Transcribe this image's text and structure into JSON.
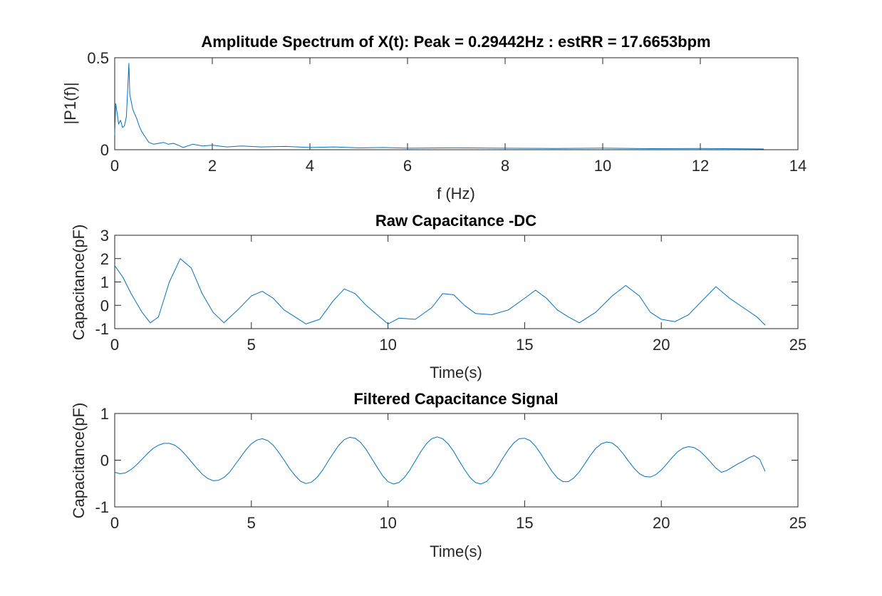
{
  "colors": {
    "series": "#0072bd",
    "axes": "#262626",
    "background": "#ffffff"
  },
  "chart_data": [
    {
      "type": "line",
      "title": "Amplitude Spectrum of X(t): Peak = 0.29442Hz : estRR = 17.6653bpm",
      "xlabel": "f (Hz)",
      "ylabel": "|P1(f)|",
      "xlim": [
        0,
        14
      ],
      "ylim": [
        0,
        0.5
      ],
      "xticks": [
        "0",
        "2",
        "4",
        "6",
        "8",
        "10",
        "12",
        "14"
      ],
      "yticks": [
        "0",
        "0.5"
      ],
      "grid": false,
      "series": [
        {
          "x": [
            0,
            0.02,
            0.05,
            0.08,
            0.12,
            0.16,
            0.2,
            0.24,
            0.27,
            0.29,
            0.31,
            0.34,
            0.37,
            0.4,
            0.45,
            0.5,
            0.55,
            0.6,
            0.65,
            0.7,
            0.8,
            0.9,
            1.0,
            1.1,
            1.2,
            1.3,
            1.4,
            1.6,
            1.8,
            2.0,
            2.3,
            2.6,
            3.0,
            3.5,
            4.0,
            4.5,
            5.0,
            5.5,
            6.0,
            7.0,
            8.0,
            9.0,
            10.0,
            11.0,
            12.0,
            13.0,
            13.3
          ],
          "y": [
            0.08,
            0.25,
            0.2,
            0.14,
            0.16,
            0.12,
            0.13,
            0.18,
            0.35,
            0.47,
            0.3,
            0.26,
            0.22,
            0.2,
            0.17,
            0.13,
            0.1,
            0.08,
            0.06,
            0.04,
            0.03,
            0.035,
            0.04,
            0.03,
            0.035,
            0.025,
            0.012,
            0.03,
            0.02,
            0.025,
            0.015,
            0.02,
            0.015,
            0.018,
            0.012,
            0.015,
            0.01,
            0.012,
            0.008,
            0.01,
            0.008,
            0.007,
            0.009,
            0.006,
            0.007,
            0.005,
            0.004
          ]
        }
      ]
    },
    {
      "type": "line",
      "title": "Raw Capacitance -DC",
      "xlabel": "Time(s)",
      "ylabel": "Capacitance(pF)",
      "xlim": [
        0,
        25
      ],
      "ylim": [
        -1,
        3
      ],
      "xticks": [
        "0",
        "5",
        "10",
        "15",
        "20",
        "25"
      ],
      "yticks": [
        "-1",
        "0",
        "1",
        "2",
        "3"
      ],
      "grid": false,
      "series": [
        {
          "x": [
            0,
            0.3,
            0.6,
            1.0,
            1.3,
            1.6,
            2.0,
            2.4,
            2.8,
            3.2,
            3.6,
            4.0,
            4.5,
            5.0,
            5.4,
            5.8,
            6.2,
            6.6,
            7.0,
            7.5,
            8.0,
            8.4,
            8.8,
            9.2,
            9.6,
            10.0,
            10.4,
            11.0,
            11.6,
            12.0,
            12.4,
            12.8,
            13.2,
            13.8,
            14.4,
            15.0,
            15.4,
            15.8,
            16.2,
            16.6,
            17.0,
            17.6,
            18.2,
            18.7,
            19.2,
            19.6,
            20.0,
            20.5,
            21.0,
            21.5,
            22.0,
            22.5,
            23.0,
            23.5,
            23.8
          ],
          "y": [
            1.7,
            1.2,
            0.5,
            -0.3,
            -0.75,
            -0.5,
            1.0,
            2.0,
            1.6,
            0.5,
            -0.3,
            -0.75,
            -0.2,
            0.4,
            0.6,
            0.3,
            -0.2,
            -0.5,
            -0.8,
            -0.6,
            0.2,
            0.7,
            0.5,
            0.0,
            -0.4,
            -0.8,
            -0.55,
            -0.6,
            -0.1,
            0.5,
            0.45,
            0.0,
            -0.35,
            -0.4,
            -0.2,
            0.3,
            0.65,
            0.3,
            -0.2,
            -0.5,
            -0.75,
            -0.3,
            0.4,
            0.85,
            0.4,
            -0.3,
            -0.6,
            -0.7,
            -0.4,
            0.2,
            0.8,
            0.3,
            -0.1,
            -0.5,
            -0.85
          ]
        }
      ]
    },
    {
      "type": "line",
      "title": "Filtered Capacitance Signal",
      "xlabel": "Time(s)",
      "ylabel": "Capacitance(pF)",
      "xlim": [
        0,
        25
      ],
      "ylim": [
        -1,
        1
      ],
      "xticks": [
        "0",
        "5",
        "10",
        "15",
        "20",
        "25"
      ],
      "yticks": [
        "-1",
        "0",
        "1"
      ],
      "grid": false,
      "series": [
        {
          "x": [
            0,
            0.2,
            0.4,
            0.6,
            0.8,
            1.0,
            1.2,
            1.4,
            1.6,
            1.8,
            2.0,
            2.2,
            2.4,
            2.6,
            2.8,
            3.0,
            3.2,
            3.4,
            3.6,
            3.8,
            4.0,
            4.2,
            4.4,
            4.6,
            4.8,
            5.0,
            5.2,
            5.4,
            5.6,
            5.8,
            6.0,
            6.2,
            6.4,
            6.6,
            6.8,
            7.0,
            7.2,
            7.4,
            7.6,
            7.8,
            8.0,
            8.2,
            8.4,
            8.6,
            8.8,
            9.0,
            9.2,
            9.4,
            9.6,
            9.8,
            10.0,
            10.2,
            10.4,
            10.6,
            10.8,
            11.0,
            11.2,
            11.4,
            11.6,
            11.8,
            12.0,
            12.2,
            12.4,
            12.6,
            12.8,
            13.0,
            13.2,
            13.4,
            13.6,
            13.8,
            14.0,
            14.2,
            14.4,
            14.6,
            14.8,
            15.0,
            15.2,
            15.4,
            15.6,
            15.8,
            16.0,
            16.2,
            16.4,
            16.6,
            16.8,
            17.0,
            17.2,
            17.4,
            17.6,
            17.8,
            18.0,
            18.2,
            18.4,
            18.6,
            18.8,
            19.0,
            19.2,
            19.4,
            19.6,
            19.8,
            20.0,
            20.2,
            20.4,
            20.6,
            20.8,
            21.0,
            21.2,
            21.4,
            21.6,
            21.8,
            22.0,
            22.2,
            22.4,
            22.6,
            22.8,
            23.0,
            23.2,
            23.4,
            23.6,
            23.8
          ],
          "y": [
            -0.26,
            -0.29,
            -0.27,
            -0.2,
            -0.1,
            0.02,
            0.14,
            0.25,
            0.32,
            0.36,
            0.36,
            0.32,
            0.23,
            0.11,
            -0.03,
            -0.17,
            -0.3,
            -0.39,
            -0.44,
            -0.43,
            -0.37,
            -0.26,
            -0.1,
            0.06,
            0.22,
            0.35,
            0.43,
            0.46,
            0.42,
            0.32,
            0.17,
            0.0,
            -0.18,
            -0.33,
            -0.45,
            -0.5,
            -0.47,
            -0.37,
            -0.22,
            -0.03,
            0.15,
            0.32,
            0.44,
            0.49,
            0.47,
            0.38,
            0.23,
            0.04,
            -0.15,
            -0.33,
            -0.46,
            -0.51,
            -0.48,
            -0.37,
            -0.21,
            -0.01,
            0.18,
            0.35,
            0.46,
            0.5,
            0.46,
            0.35,
            0.19,
            -0.01,
            -0.2,
            -0.37,
            -0.48,
            -0.51,
            -0.46,
            -0.34,
            -0.16,
            0.04,
            0.22,
            0.37,
            0.46,
            0.47,
            0.42,
            0.3,
            0.13,
            -0.06,
            -0.24,
            -0.38,
            -0.46,
            -0.46,
            -0.38,
            -0.25,
            -0.08,
            0.1,
            0.25,
            0.35,
            0.39,
            0.37,
            0.28,
            0.14,
            -0.02,
            -0.17,
            -0.29,
            -0.35,
            -0.36,
            -0.31,
            -0.21,
            -0.08,
            0.06,
            0.18,
            0.26,
            0.29,
            0.27,
            0.2,
            0.09,
            -0.04,
            -0.17,
            -0.26,
            -0.22,
            -0.15,
            -0.08,
            -0.02,
            0.05,
            0.1,
            0.02,
            -0.24
          ]
        }
      ]
    }
  ]
}
